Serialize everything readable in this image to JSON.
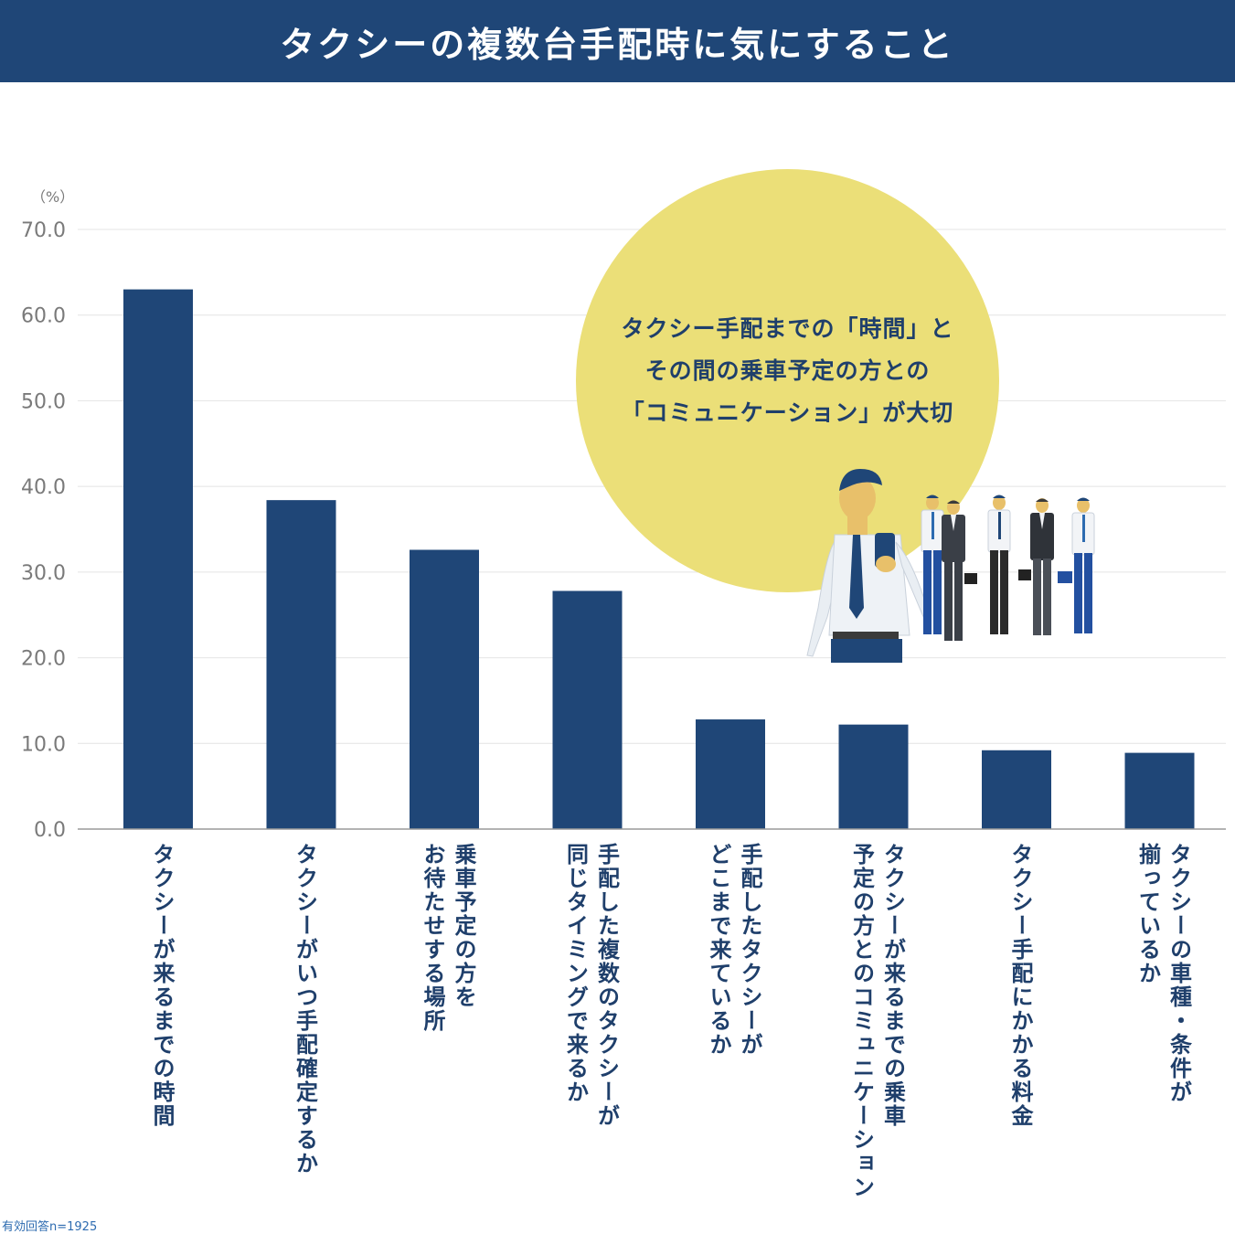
{
  "header": {
    "title": "タクシーの複数台手配時に気にすること"
  },
  "callout": {
    "lines": [
      "タクシー手配までの「時間」と",
      "その間の乗車予定の方との",
      "「コミュニケーション」が大切"
    ]
  },
  "footnote": "有効回答n=1925",
  "colors": {
    "bar": "#1f4677",
    "header_bg": "#1f4677",
    "bubble": "#ebdf78",
    "label": "#1f3f6b",
    "grid": "#e4e4e4"
  },
  "chart_data": {
    "type": "bar",
    "title": "タクシーの複数台手配時に気にすること",
    "unit_label": "（%）",
    "ylim": [
      0,
      70
    ],
    "yticks": [
      "0.0",
      "10.0",
      "20.0",
      "30.0",
      "40.0",
      "50.0",
      "60.0",
      "70.0"
    ],
    "grid": true,
    "categories": [
      "タクシーが来るまでの時間",
      "タクシーがいつ手配確定するか",
      "乗車予定の方を\nお待たせする場所",
      "手配した複数のタクシーが\n同じタイミングで来るか",
      "手配したタクシーが\nどこまで来ているか",
      "タクシーが来るまでの乗車\n予定の方とのコミュニケーション",
      "タクシー手配にかかる料金",
      "タクシーの車種・条件が\n揃っているか"
    ],
    "values": [
      63.0,
      38.4,
      32.6,
      27.8,
      12.8,
      12.2,
      9.2,
      8.9
    ]
  }
}
